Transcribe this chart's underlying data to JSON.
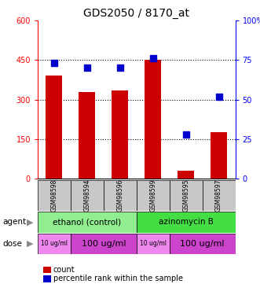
{
  "title": "GDS2050 / 8170_at",
  "samples": [
    "GSM98598",
    "GSM98594",
    "GSM98596",
    "GSM98599",
    "GSM98595",
    "GSM98597"
  ],
  "counts": [
    390,
    330,
    335,
    450,
    30,
    175
  ],
  "percentiles": [
    73,
    70,
    70,
    76,
    28,
    52
  ],
  "bar_color": "#cc0000",
  "dot_color": "#0000cc",
  "ylim_left": [
    0,
    600
  ],
  "ylim_right": [
    0,
    100
  ],
  "yticks_left": [
    0,
    150,
    300,
    450,
    600
  ],
  "yticks_right": [
    0,
    25,
    50,
    75,
    100
  ],
  "yticklabels_left": [
    "0",
    "150",
    "300",
    "450",
    "600"
  ],
  "yticklabels_right": [
    "0",
    "25",
    "50",
    "75",
    "100%"
  ],
  "agent_ethanol_color": "#90ee90",
  "agent_azino_color": "#44dd44",
  "dose_light_color": "#ee88ee",
  "dose_dark_color": "#cc44cc",
  "sample_box_color": "#c8c8c8",
  "legend_count_color": "#cc0000",
  "legend_dot_color": "#0000cc",
  "bar_width": 0.5,
  "dot_size": 40
}
